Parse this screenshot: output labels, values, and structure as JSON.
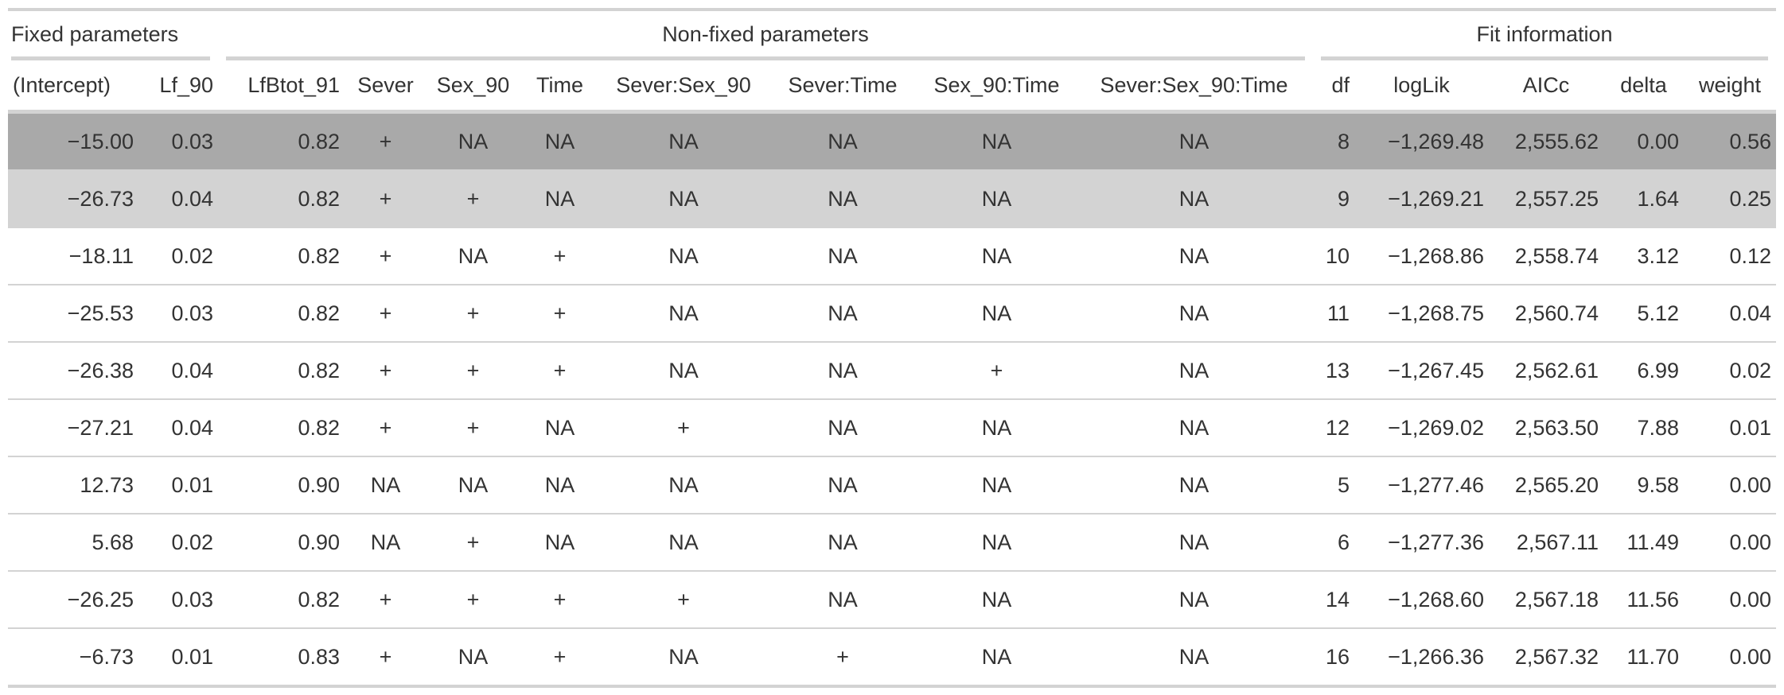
{
  "colors": {
    "row_best": "#a9a9a9",
    "row_second": "#d3d3d3",
    "rule": "#d3d3d3",
    "text": "#333333"
  },
  "spanners": [
    {
      "label": "Fixed parameters",
      "span": 2,
      "align": "left"
    },
    {
      "label": "Non-fixed parameters",
      "span": 8,
      "align": "center"
    },
    {
      "label": "Fit information",
      "span": 5,
      "align": "center"
    }
  ],
  "columns": [
    "(Intercept)",
    "Lf_90",
    "LfBtot_91",
    "Sever",
    "Sex_90",
    "Time",
    "Sever:Sex_90",
    "Sever:Time",
    "Sex_90:Time",
    "Sever:Sex_90:Time",
    "df",
    "logLik",
    "AICc",
    "delta",
    "weight"
  ],
  "rows": [
    [
      "−15.00",
      "0.03",
      "0.82",
      "+",
      "NA",
      "NA",
      "NA",
      "NA",
      "NA",
      "NA",
      "8",
      "−1,269.48",
      "2,555.62",
      "0.00",
      "0.56"
    ],
    [
      "−26.73",
      "0.04",
      "0.82",
      "+",
      "+",
      "NA",
      "NA",
      "NA",
      "NA",
      "NA",
      "9",
      "−1,269.21",
      "2,557.25",
      "1.64",
      "0.25"
    ],
    [
      "−18.11",
      "0.02",
      "0.82",
      "+",
      "NA",
      "+",
      "NA",
      "NA",
      "NA",
      "NA",
      "10",
      "−1,268.86",
      "2,558.74",
      "3.12",
      "0.12"
    ],
    [
      "−25.53",
      "0.03",
      "0.82",
      "+",
      "+",
      "+",
      "NA",
      "NA",
      "NA",
      "NA",
      "11",
      "−1,268.75",
      "2,560.74",
      "5.12",
      "0.04"
    ],
    [
      "−26.38",
      "0.04",
      "0.82",
      "+",
      "+",
      "+",
      "NA",
      "NA",
      "+",
      "NA",
      "13",
      "−1,267.45",
      "2,562.61",
      "6.99",
      "0.02"
    ],
    [
      "−27.21",
      "0.04",
      "0.82",
      "+",
      "+",
      "NA",
      "+",
      "NA",
      "NA",
      "NA",
      "12",
      "−1,269.02",
      "2,563.50",
      "7.88",
      "0.01"
    ],
    [
      "12.73",
      "0.01",
      "0.90",
      "NA",
      "NA",
      "NA",
      "NA",
      "NA",
      "NA",
      "NA",
      "5",
      "−1,277.46",
      "2,565.20",
      "9.58",
      "0.00"
    ],
    [
      "5.68",
      "0.02",
      "0.90",
      "NA",
      "+",
      "NA",
      "NA",
      "NA",
      "NA",
      "NA",
      "6",
      "−1,277.36",
      "2,567.11",
      "11.49",
      "0.00"
    ],
    [
      "−26.25",
      "0.03",
      "0.82",
      "+",
      "+",
      "+",
      "+",
      "NA",
      "NA",
      "NA",
      "14",
      "−1,268.60",
      "2,567.18",
      "11.56",
      "0.00"
    ],
    [
      "−6.73",
      "0.01",
      "0.83",
      "+",
      "NA",
      "+",
      "NA",
      "+",
      "NA",
      "NA",
      "16",
      "−1,266.36",
      "2,567.32",
      "11.70",
      "0.00"
    ]
  ]
}
